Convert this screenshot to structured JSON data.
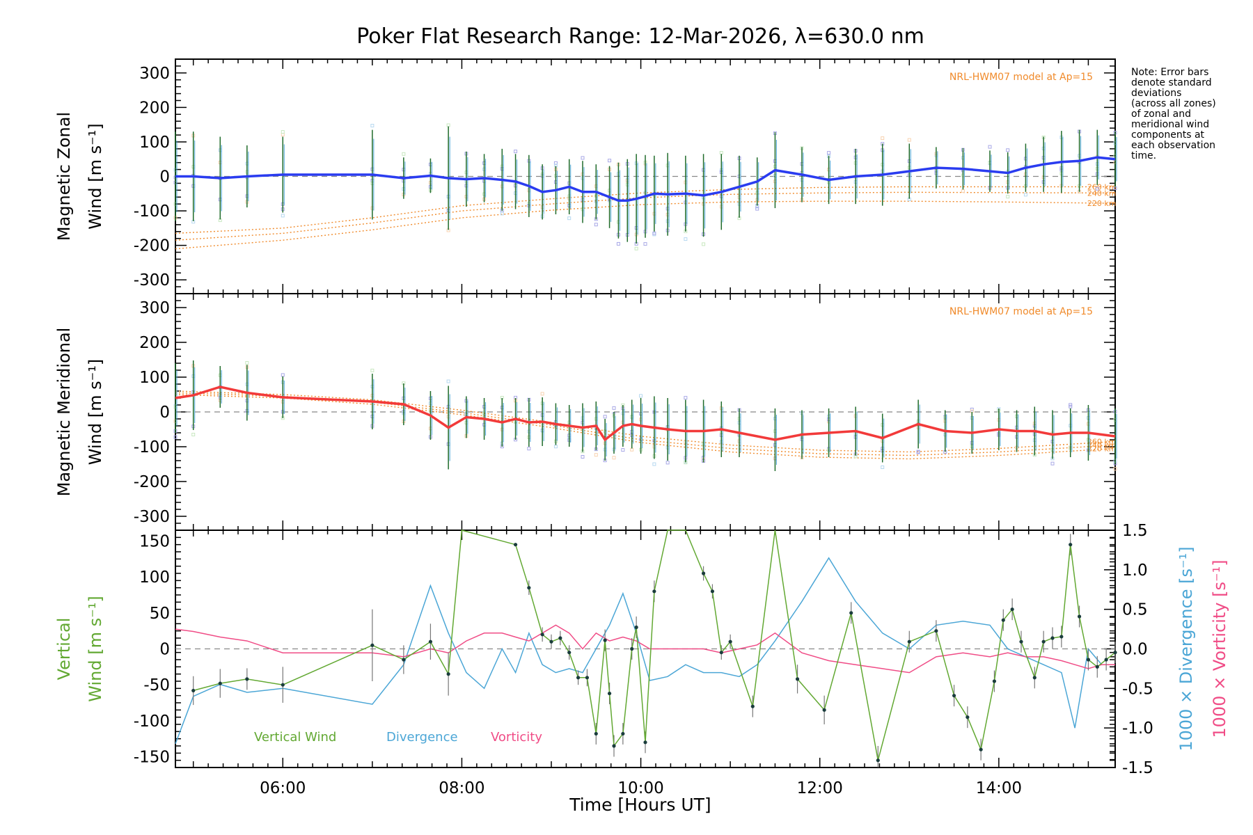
{
  "chart_data": {
    "title": "Poker Flat Research Range: 12-Mar-2026, λ=630.0 nm",
    "xlabel": "Time [Hours UT]",
    "x_range_hours": [
      4.8,
      15.3
    ],
    "x_ticks": [
      {
        "h": 6,
        "label": "06:00"
      },
      {
        "h": 8,
        "label": "08:00"
      },
      {
        "h": 10,
        "label": "10:00"
      },
      {
        "h": 12,
        "label": "12:00"
      },
      {
        "h": 14,
        "label": "14:00"
      }
    ],
    "note": [
      "Note: Error bars",
      "denote standard",
      "deviations",
      "(across all zones)",
      "of zonal and",
      "meridional wind",
      "components at",
      "each observation",
      "time."
    ],
    "model_label": "NRL-HWM07 model at Ap=15",
    "altitude_labels": [
      "260 km",
      "240 km",
      "220 km"
    ],
    "panels": [
      {
        "type": "line",
        "ylabel": [
          "Magnetic Zonal",
          "Wind [m s⁻¹]"
        ],
        "ylim": [
          -340,
          340
        ],
        "yticks": [
          300,
          200,
          100,
          0,
          -100,
          -200,
          -300
        ],
        "series_color": "#2a3cf0",
        "times": [
          4.8,
          5.0,
          5.3,
          5.6,
          6.0,
          7.0,
          7.35,
          7.65,
          7.85,
          8.05,
          8.25,
          8.45,
          8.6,
          8.75,
          8.9,
          9.05,
          9.2,
          9.35,
          9.5,
          9.65,
          9.75,
          9.85,
          9.95,
          10.05,
          10.15,
          10.3,
          10.5,
          10.7,
          10.9,
          11.1,
          11.3,
          11.5,
          11.8,
          12.1,
          12.4,
          12.7,
          13.0,
          13.3,
          13.6,
          13.9,
          14.1,
          14.3,
          14.5,
          14.7,
          14.9,
          15.1,
          15.3
        ],
        "values": [
          0,
          0,
          -5,
          0,
          5,
          5,
          -5,
          2,
          -5,
          -8,
          -5,
          -10,
          -15,
          -28,
          -45,
          -40,
          -30,
          -45,
          -45,
          -60,
          -70,
          -70,
          -65,
          -58,
          -50,
          -52,
          -50,
          -55,
          -45,
          -30,
          -15,
          18,
          5,
          -10,
          0,
          5,
          15,
          25,
          22,
          15,
          10,
          25,
          35,
          42,
          45,
          55,
          50
        ],
        "errors": [
          130,
          130,
          120,
          90,
          110,
          130,
          60,
          50,
          150,
          80,
          70,
          90,
          80,
          90,
          80,
          70,
          80,
          90,
          80,
          90,
          110,
          120,
          130,
          120,
          110,
          120,
          110,
          120,
          110,
          90,
          70,
          110,
          80,
          70,
          80,
          90,
          80,
          60,
          60,
          60,
          60,
          70,
          80,
          90,
          90,
          80,
          80
        ],
        "model_curves": [
          {
            "label": "260 km",
            "times": [
              4.8,
              6,
              7,
              8,
              9,
              10,
              11,
              12,
              13,
              14,
              15.3
            ],
            "values": [
              -165,
              -150,
              -120,
              -85,
              -65,
              -48,
              -38,
              -32,
              -30,
              -30,
              -30
            ]
          },
          {
            "label": "240 km",
            "times": [
              4.8,
              6,
              7,
              8,
              9,
              10,
              11,
              12,
              13,
              14,
              15.3
            ],
            "values": [
              -185,
              -165,
              -135,
              -100,
              -80,
              -62,
              -52,
              -48,
              -46,
              -47,
              -48
            ]
          },
          {
            "label": "220 km",
            "times": [
              4.8,
              6,
              7,
              8,
              9,
              10,
              11,
              12,
              13,
              14,
              15.3
            ],
            "values": [
              -210,
              -185,
              -155,
              -120,
              -98,
              -82,
              -74,
              -72,
              -72,
              -74,
              -78
            ]
          }
        ]
      },
      {
        "type": "line",
        "ylabel": [
          "Magnetic Meridional",
          "Wind [m s⁻¹]"
        ],
        "ylim": [
          -340,
          340
        ],
        "yticks": [
          300,
          200,
          100,
          0,
          -100,
          -200,
          -300
        ],
        "series_color": "#f23a3a",
        "times": [
          4.8,
          5.0,
          5.3,
          5.6,
          6.0,
          7.0,
          7.35,
          7.65,
          7.85,
          8.05,
          8.25,
          8.45,
          8.6,
          8.75,
          8.9,
          9.05,
          9.2,
          9.35,
          9.5,
          9.6,
          9.7,
          9.8,
          9.9,
          10.0,
          10.15,
          10.3,
          10.5,
          10.7,
          10.9,
          11.1,
          11.5,
          11.8,
          12.1,
          12.4,
          12.7,
          13.1,
          13.4,
          13.7,
          14.0,
          14.2,
          14.4,
          14.6,
          14.8,
          15.0,
          15.3
        ],
        "values": [
          40,
          48,
          72,
          55,
          42,
          30,
          22,
          -10,
          -45,
          -15,
          -20,
          -30,
          -20,
          -30,
          -28,
          -35,
          -40,
          -45,
          -40,
          -80,
          -60,
          -40,
          -35,
          -40,
          -45,
          -50,
          -55,
          -55,
          -50,
          -60,
          -80,
          -65,
          -60,
          -55,
          -75,
          -35,
          -55,
          -60,
          -50,
          -55,
          -55,
          -65,
          -60,
          -60,
          -70
        ],
        "errors": [
          100,
          100,
          60,
          80,
          60,
          80,
          60,
          70,
          120,
          60,
          60,
          70,
          60,
          70,
          70,
          60,
          60,
          70,
          70,
          60,
          60,
          60,
          70,
          80,
          90,
          90,
          90,
          90,
          80,
          70,
          90,
          70,
          70,
          70,
          70,
          70,
          60,
          60,
          60,
          60,
          70,
          70,
          70,
          80,
          80
        ],
        "model_curves": [
          {
            "label": "260 km",
            "times": [
              4.8,
              6,
              7,
              8,
              9,
              10,
              11,
              12,
              13,
              14,
              15.3
            ],
            "values": [
              60,
              50,
              35,
              5,
              -30,
              -70,
              -95,
              -110,
              -115,
              -105,
              -85
            ]
          },
          {
            "label": "240 km",
            "times": [
              4.8,
              6,
              7,
              8,
              9,
              10,
              11,
              12,
              13,
              14,
              15.3
            ],
            "values": [
              55,
              45,
              28,
              -2,
              -38,
              -80,
              -105,
              -120,
              -125,
              -115,
              -95
            ]
          },
          {
            "label": "220 km",
            "times": [
              4.8,
              6,
              7,
              8,
              9,
              10,
              11,
              12,
              13,
              14,
              15.3
            ],
            "values": [
              50,
              40,
              22,
              -8,
              -45,
              -88,
              -115,
              -130,
              -135,
              -125,
              -105
            ]
          }
        ]
      },
      {
        "type": "line",
        "ylabel_left": [
          "Vertical",
          "Wind [m s⁻¹]"
        ],
        "ylabel_right_1": "1000 × Divergence [s⁻¹]",
        "ylabel_right_2": "1000 × Vorticity [s⁻¹]",
        "ylim": [
          -165,
          165
        ],
        "yticks": [
          150,
          100,
          50,
          0,
          -50,
          -100,
          -150
        ],
        "ylim_right": [
          -1.5,
          1.5
        ],
        "yticks_right": [
          "1.5",
          "1.0",
          "0.5",
          "0.0",
          "-0.5",
          "-1.0",
          "-1.5"
        ],
        "legend": [
          "Vertical Wind",
          "Divergence",
          "Vorticity"
        ],
        "series": [
          {
            "name": "Vertical Wind",
            "color": "#62a832",
            "times": [
              5.0,
              5.3,
              5.6,
              6.0,
              7.0,
              7.35,
              7.65,
              7.85,
              8.0,
              8.6,
              8.75,
              8.9,
              9.0,
              9.1,
              9.2,
              9.3,
              9.4,
              9.5,
              9.6,
              9.65,
              9.7,
              9.8,
              9.9,
              9.95,
              10.05,
              10.15,
              10.3,
              10.5,
              10.7,
              10.8,
              10.9,
              11.0,
              11.25,
              11.5,
              11.75,
              12.05,
              12.35,
              12.65,
              13.0,
              13.3,
              13.5,
              13.65,
              13.8,
              13.95,
              14.05,
              14.15,
              14.25,
              14.4,
              14.5,
              14.6,
              14.7,
              14.8,
              14.9,
              15.0,
              15.1,
              15.2,
              15.3
            ],
            "values": [
              -58,
              -48,
              -42,
              -50,
              5,
              -15,
              10,
              -35,
              170,
              145,
              85,
              20,
              10,
              15,
              -5,
              -40,
              -40,
              -118,
              12,
              -62,
              -135,
              -118,
              0,
              30,
              -130,
              80,
              165,
              165,
              105,
              80,
              -5,
              10,
              -80,
              165,
              -42,
              -85,
              50,
              -155,
              10,
              25,
              -65,
              -95,
              -140,
              -45,
              40,
              55,
              10,
              -40,
              10,
              15,
              17,
              145,
              45,
              -15,
              -25,
              -15,
              -5
            ],
            "errors": [
              20,
              20,
              15,
              25,
              50,
              20,
              25,
              30,
              0,
              0,
              10,
              10,
              10,
              10,
              10,
              10,
              12,
              15,
              15,
              15,
              15,
              15,
              15,
              15,
              15,
              15,
              0,
              0,
              10,
              10,
              10,
              10,
              15,
              0,
              20,
              20,
              15,
              20,
              15,
              15,
              15,
              15,
              15,
              15,
              15,
              15,
              15,
              15,
              15,
              15,
              15,
              15,
              15,
              15,
              15,
              15,
              15
            ]
          },
          {
            "name": "Divergence",
            "color": "#4ba6d6",
            "axis": "right",
            "times": [
              4.8,
              5.0,
              5.3,
              5.6,
              6.0,
              7.0,
              7.35,
              7.65,
              7.85,
              8.05,
              8.25,
              8.45,
              8.6,
              8.75,
              8.9,
              9.05,
              9.2,
              9.35,
              9.5,
              9.65,
              9.8,
              9.95,
              10.1,
              10.3,
              10.5,
              10.7,
              10.9,
              11.1,
              11.3,
              11.5,
              11.8,
              12.1,
              12.4,
              12.7,
              13.0,
              13.3,
              13.6,
              13.9,
              14.1,
              14.3,
              14.5,
              14.7,
              14.85,
              15.0,
              15.15,
              15.3
            ],
            "values": [
              -1.2,
              -0.6,
              -0.45,
              -0.55,
              -0.5,
              -0.7,
              -0.2,
              0.8,
              0.2,
              -0.3,
              -0.5,
              0.0,
              -0.3,
              0.2,
              -0.2,
              -0.3,
              -0.25,
              -0.3,
              0.0,
              0.3,
              0.7,
              0.2,
              -0.4,
              -0.35,
              -0.2,
              -0.3,
              -0.3,
              -0.35,
              -0.2,
              0.1,
              0.6,
              1.15,
              0.6,
              0.2,
              0.0,
              0.3,
              0.35,
              0.3,
              0.0,
              -0.1,
              -0.2,
              -0.3,
              -1.0,
              0.0,
              -0.2,
              -0.2
            ]
          },
          {
            "name": "Vorticity",
            "color": "#f04c86",
            "axis": "right",
            "times": [
              4.8,
              5.0,
              5.3,
              5.6,
              6.0,
              7.0,
              7.35,
              7.65,
              7.85,
              8.05,
              8.25,
              8.45,
              8.6,
              8.75,
              8.9,
              9.05,
              9.2,
              9.35,
              9.5,
              9.65,
              9.8,
              9.95,
              10.1,
              10.3,
              10.5,
              10.7,
              10.9,
              11.1,
              11.3,
              11.5,
              11.8,
              12.1,
              12.4,
              12.7,
              13.0,
              13.3,
              13.6,
              13.9,
              14.1,
              14.3,
              14.5,
              14.7,
              14.85,
              15.0,
              15.15,
              15.3
            ],
            "values": [
              0.25,
              0.22,
              0.15,
              0.1,
              -0.05,
              -0.05,
              -0.1,
              0.0,
              -0.05,
              0.1,
              0.2,
              0.2,
              0.15,
              0.1,
              0.2,
              0.3,
              0.2,
              0.0,
              0.2,
              0.1,
              0.15,
              0.1,
              0.0,
              0.0,
              0.0,
              0.0,
              -0.05,
              0.0,
              0.05,
              0.2,
              -0.05,
              -0.15,
              -0.2,
              -0.25,
              -0.3,
              -0.1,
              -0.05,
              -0.1,
              -0.05,
              -0.1,
              -0.1,
              -0.15,
              -0.2,
              -0.25,
              -0.2,
              -0.2
            ]
          }
        ]
      }
    ]
  }
}
